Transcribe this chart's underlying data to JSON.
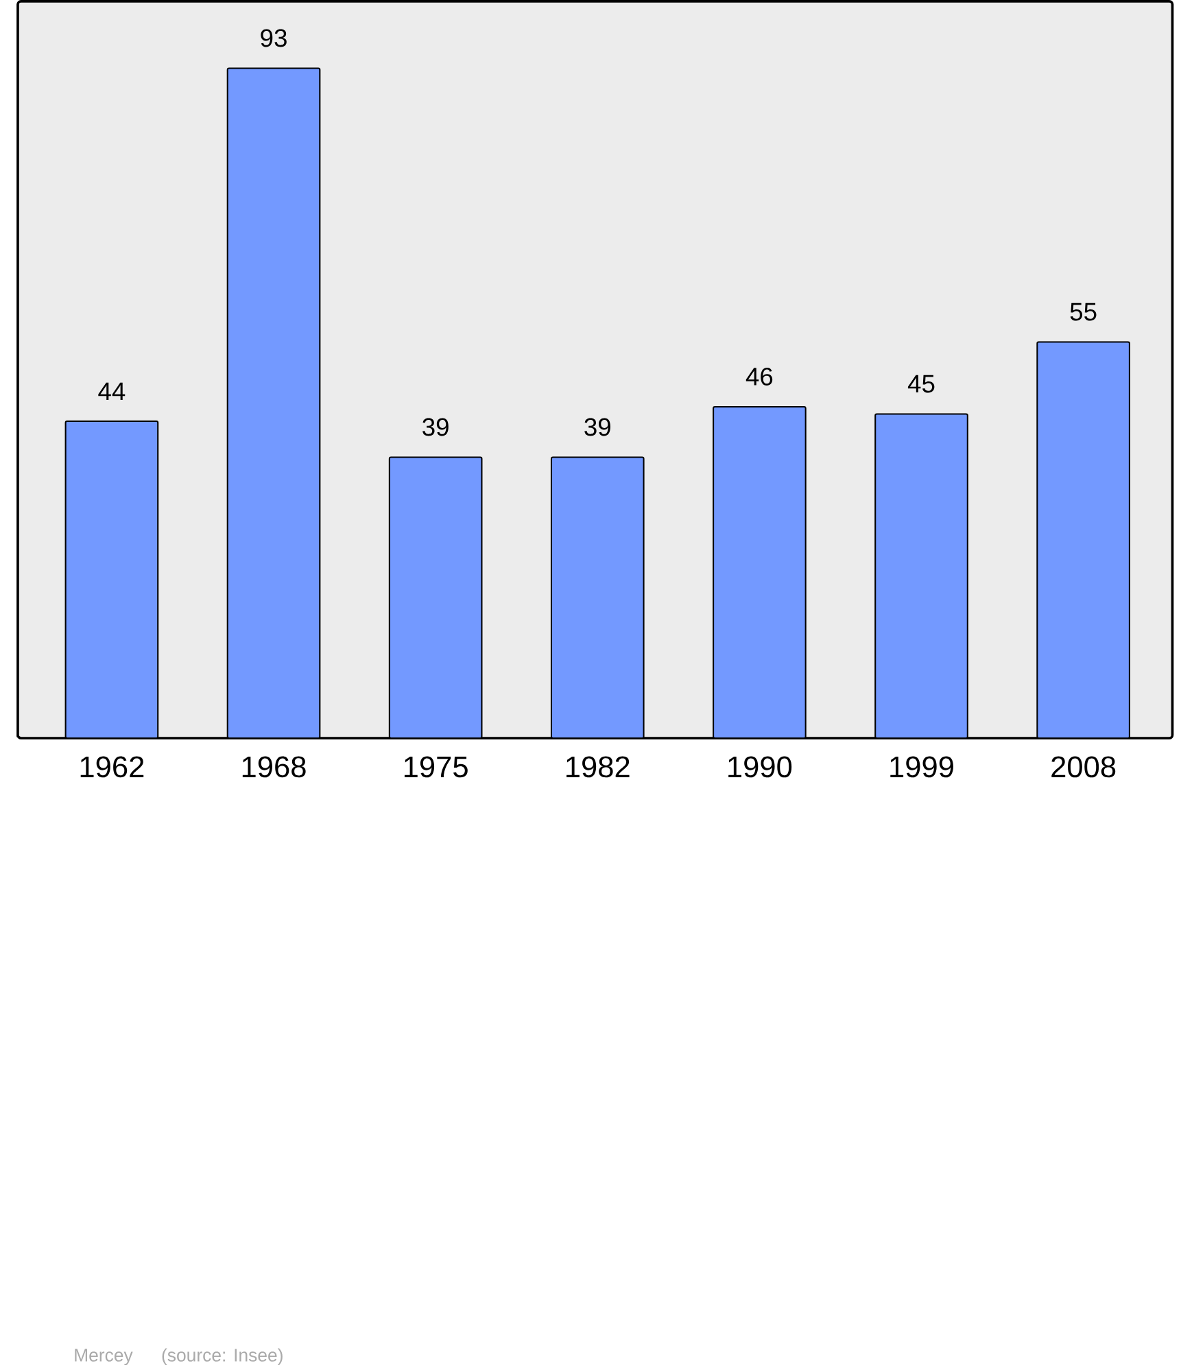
{
  "chart_data": {
    "type": "bar",
    "categories": [
      "1962",
      "1968",
      "1975",
      "1982",
      "1990",
      "1999",
      "2008"
    ],
    "values": [
      44,
      93,
      39,
      39,
      46,
      45,
      55
    ],
    "color": "#7399ff",
    "data_labels": true,
    "annotations": [
      "Mercey",
      "(source: Insee)"
    ]
  }
}
